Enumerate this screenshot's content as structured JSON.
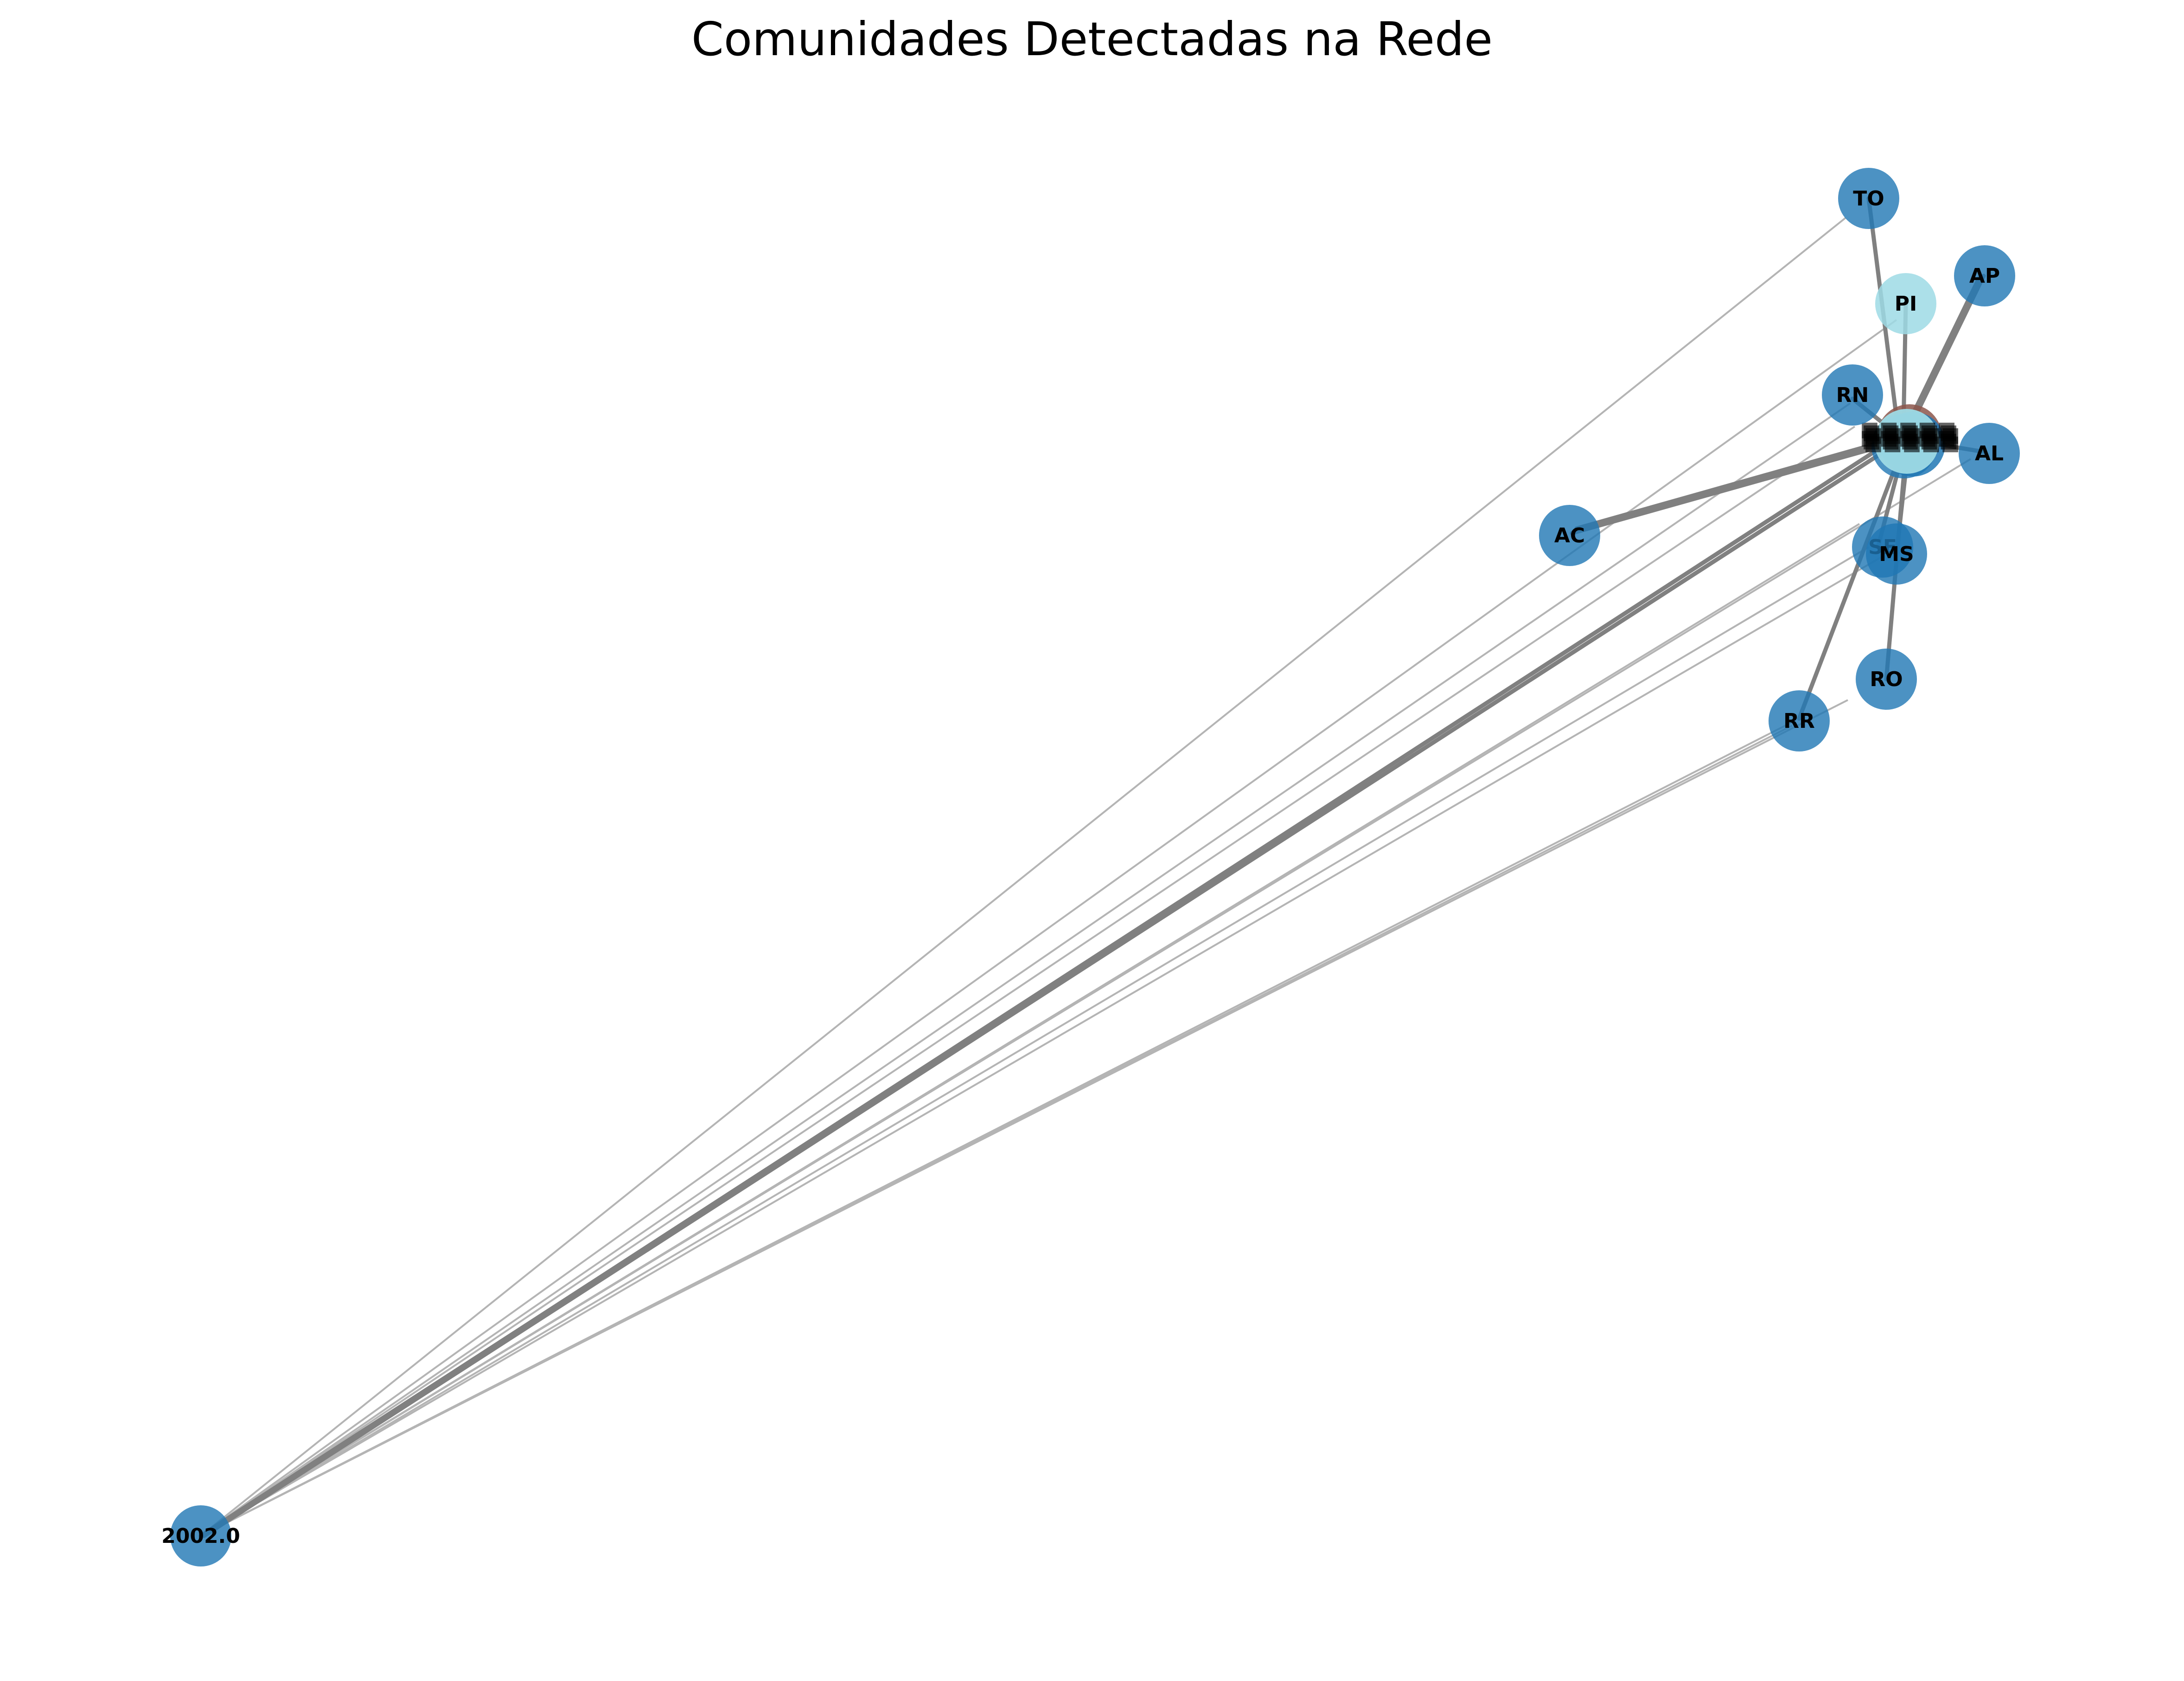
{
  "title": "Comunidades Detectadas na Rede",
  "colors": {
    "community_main": "#1f77b4",
    "community_pi": "#9edae5",
    "community_brown": "#8c564b",
    "edge": "#808080"
  },
  "nodes": [
    {
      "id": "TO",
      "label": "TO",
      "community": "main"
    },
    {
      "id": "AP",
      "label": "AP",
      "community": "main"
    },
    {
      "id": "PI",
      "label": "PI",
      "community": "pi"
    },
    {
      "id": "RN",
      "label": "RN",
      "community": "main"
    },
    {
      "id": "AL",
      "label": "AL",
      "community": "main"
    },
    {
      "id": "AC",
      "label": "AC",
      "community": "main"
    },
    {
      "id": "SE",
      "label": "SE",
      "community": "main"
    },
    {
      "id": "MS",
      "label": "MS",
      "community": "main"
    },
    {
      "id": "RO",
      "label": "RO",
      "community": "main"
    },
    {
      "id": "RR",
      "label": "RR",
      "community": "main"
    },
    {
      "id": "2002.0",
      "label": "2002.0",
      "community": "main"
    }
  ]
}
